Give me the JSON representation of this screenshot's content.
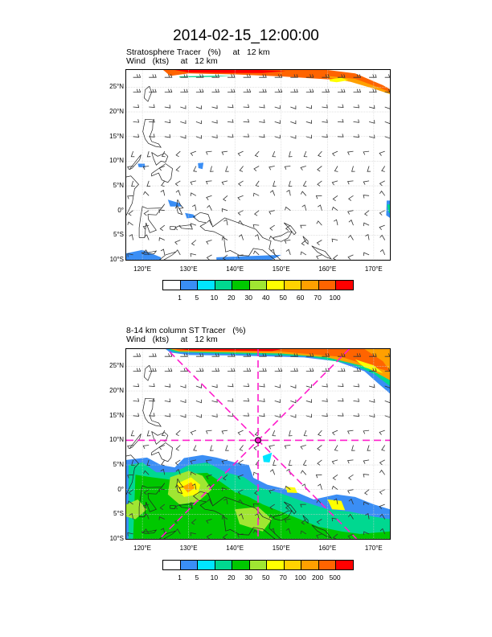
{
  "title": "2014-02-15_12:00:00",
  "panel1": {
    "label_line1": "Stratosphere Tracer   (%)     at   12 km",
    "label_line2": "Wind   (kts)     at   12 km",
    "colorbar_labels": [
      "1",
      "5",
      "10",
      "20",
      "30",
      "40",
      "50",
      "60",
      "70",
      "100"
    ],
    "colorbar_colors": [
      "#ffffff",
      "#3a8ef5",
      "#00e5ff",
      "#00d890",
      "#00c800",
      "#a0e632",
      "#ffff00",
      "#ffd200",
      "#ffa000",
      "#ff6400",
      "#ff0000"
    ]
  },
  "panel2": {
    "label_line1": "8-14 km column ST Tracer   (%)",
    "label_line2": "Wind   (kts)     at   12 km",
    "colorbar_labels": [
      "1",
      "5",
      "10",
      "20",
      "30",
      "50",
      "70",
      "100",
      "200",
      "500"
    ],
    "colorbar_colors": [
      "#ffffff",
      "#3a8ef5",
      "#00e5ff",
      "#00d890",
      "#00c800",
      "#a0e632",
      "#ffff00",
      "#ffd200",
      "#ffa000",
      "#ff6400",
      "#ff0000"
    ]
  },
  "lat_labels": [
    "25°N",
    "20°N",
    "15°N",
    "10°N",
    "5°N",
    "0°",
    "5°S",
    "10°S"
  ],
  "lon_labels": [
    "120°E",
    "130°E",
    "140°E",
    "150°E",
    "160°E",
    "170°E"
  ]
}
